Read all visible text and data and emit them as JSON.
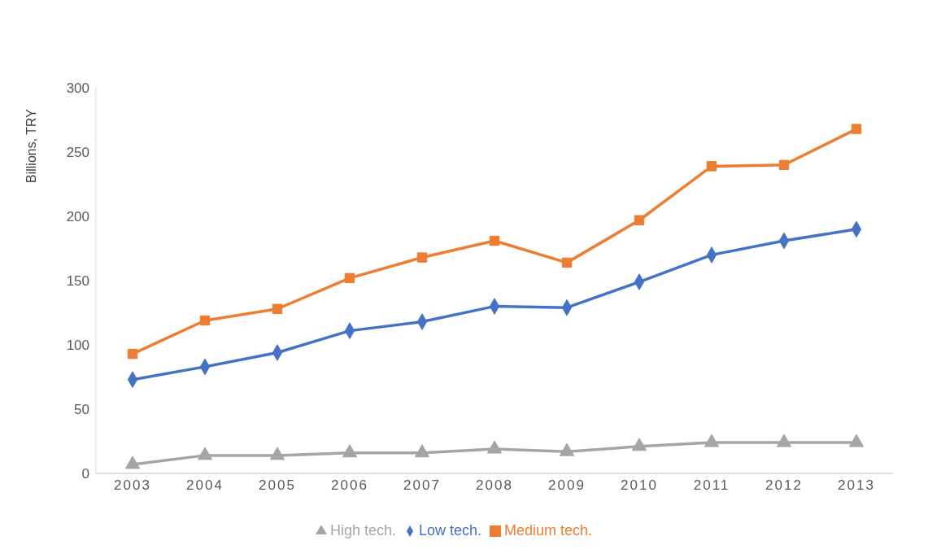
{
  "chart_data": {
    "type": "line",
    "ylabel": "Billions, TRY",
    "categories": [
      "2003",
      "2004",
      "2005",
      "2006",
      "2007",
      "2008",
      "2009",
      "2010",
      "2011",
      "2012",
      "2013"
    ],
    "series": [
      {
        "name": "Low tech.",
        "color": "#4472c4",
        "marker": "diamond",
        "values": [
          73,
          83,
          94,
          111,
          118,
          130,
          129,
          149,
          170,
          181,
          190
        ]
      },
      {
        "name": "Medium tech.",
        "color": "#ed7d31",
        "marker": "square",
        "values": [
          93,
          119,
          128,
          152,
          168,
          181,
          164,
          197,
          239,
          240,
          268
        ]
      },
      {
        "name": "High tech.",
        "color": "#a5a5a5",
        "marker": "triangle",
        "values": [
          7,
          14,
          14,
          16,
          16,
          19,
          17,
          21,
          24,
          24,
          24
        ]
      }
    ],
    "ylim": [
      0,
      300
    ],
    "yticks": [
      0,
      50,
      100,
      150,
      200,
      250,
      300
    ],
    "grid": false,
    "legend": "bottom",
    "line_style": "solid"
  }
}
